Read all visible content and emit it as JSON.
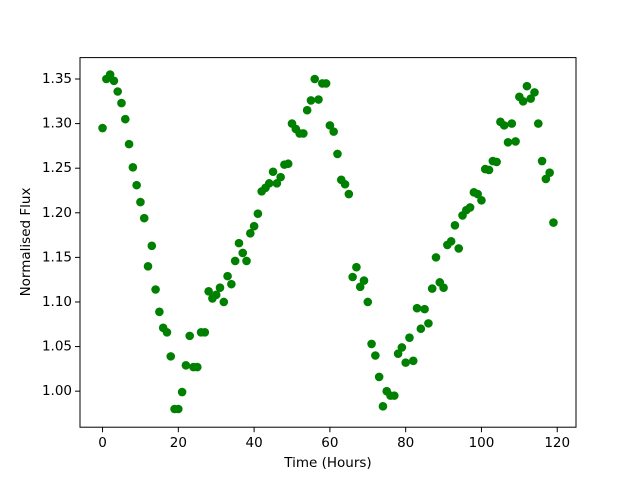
{
  "chart_data": {
    "type": "scatter",
    "xlabel": "Time (Hours)",
    "ylabel": "Normalised Flux",
    "color": "#008000",
    "x": [
      0,
      1,
      2,
      3,
      4,
      5,
      6,
      7,
      8,
      9,
      10,
      11,
      12,
      13,
      14,
      15,
      16,
      17,
      18,
      19,
      20,
      21,
      22,
      23,
      24,
      25,
      26,
      27,
      28,
      29,
      30,
      31,
      32,
      33,
      34,
      35,
      36,
      37,
      38,
      39,
      40,
      41,
      42,
      43,
      44,
      45,
      46,
      47,
      48,
      49,
      50,
      51,
      52,
      53,
      54,
      55,
      56,
      57,
      58,
      59,
      60,
      61,
      62,
      63,
      64,
      65,
      66,
      67,
      68,
      69,
      70,
      71,
      72,
      73,
      74,
      75,
      76,
      77,
      78,
      79,
      80,
      81,
      82,
      83,
      84,
      85,
      86,
      87,
      88,
      89,
      90,
      91,
      92,
      93,
      94,
      95,
      96,
      97,
      98,
      99,
      100,
      101,
      102,
      103,
      104,
      105,
      106,
      107,
      108,
      109,
      110,
      111,
      112,
      113,
      114,
      115,
      116,
      117,
      118,
      119
    ],
    "values": [
      1.295,
      1.35,
      1.355,
      1.348,
      1.336,
      1.323,
      1.305,
      1.277,
      1.251,
      1.231,
      1.212,
      1.194,
      1.14,
      1.163,
      1.114,
      1.089,
      1.071,
      1.066,
      1.039,
      0.98,
      0.98,
      0.999,
      1.029,
      1.062,
      1.027,
      1.027,
      1.066,
      1.066,
      1.112,
      1.104,
      1.108,
      1.116,
      1.1,
      1.129,
      1.12,
      1.146,
      1.166,
      1.155,
      1.146,
      1.177,
      1.185,
      1.199,
      1.224,
      1.228,
      1.233,
      1.246,
      1.233,
      1.24,
      1.254,
      1.255,
      1.3,
      1.294,
      1.289,
      1.289,
      1.315,
      1.326,
      1.35,
      1.327,
      1.345,
      1.345,
      1.298,
      1.291,
      1.266,
      1.237,
      1.232,
      1.221,
      1.128,
      1.139,
      1.117,
      1.124,
      1.1,
      1.053,
      1.04,
      1.016,
      0.983,
      1.0,
      0.995,
      0.995,
      1.042,
      1.049,
      1.032,
      1.06,
      1.034,
      1.093,
      1.07,
      1.092,
      1.076,
      1.115,
      1.15,
      1.122,
      1.116,
      1.164,
      1.168,
      1.186,
      1.16,
      1.197,
      1.203,
      1.206,
      1.223,
      1.221,
      1.214,
      1.249,
      1.248,
      1.258,
      1.257,
      1.302,
      1.298,
      1.279,
      1.3,
      1.28,
      1.33,
      1.325,
      1.342,
      1.328,
      1.335,
      1.3,
      1.258,
      1.238,
      1.245,
      1.189
    ],
    "xlim": [
      -5.95,
      124.95
    ],
    "xticks": [
      0,
      20,
      40,
      60,
      80,
      100,
      120
    ],
    "ylim": [
      0.9596,
      1.374
    ],
    "yticks": [
      {
        "value": 1.0,
        "label": "1.00"
      },
      1.05,
      {
        "value": 1.1,
        "label": "1.10"
      },
      1.15,
      {
        "value": 1.2,
        "label": "1.20"
      },
      1.25,
      {
        "value": 1.3,
        "label": "1.30"
      },
      1.35
    ],
    "grid": false
  }
}
